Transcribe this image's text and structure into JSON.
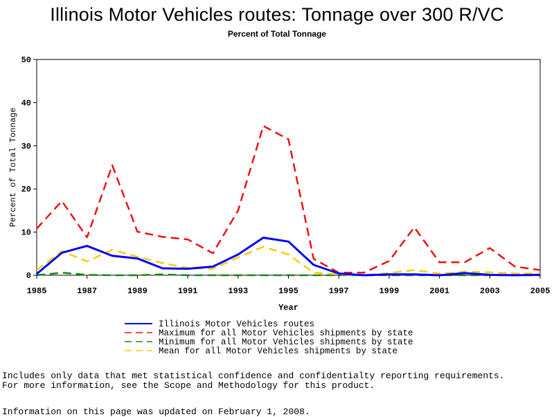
{
  "chart_data": {
    "type": "line",
    "title": "Illinois Motor Vehicles routes: Tonnage over 300 R/VC",
    "subtitle": "Percent of Total Tonnage",
    "xlabel": "Year",
    "ylabel": "Percent of Total Tonnage",
    "xlim": [
      1985,
      2005
    ],
    "ylim": [
      0,
      50
    ],
    "x": [
      1985,
      1986,
      1987,
      1988,
      1989,
      1990,
      1991,
      1992,
      1993,
      1994,
      1995,
      1996,
      1997,
      1998,
      1999,
      2000,
      2001,
      2002,
      2003,
      2004,
      2005
    ],
    "x_ticks": [
      "1985",
      "1987",
      "1989",
      "1991",
      "1993",
      "1995",
      "1997",
      "1999",
      "2001",
      "2003",
      "2005"
    ],
    "y_ticks": [
      "0",
      "10",
      "20",
      "30",
      "40",
      "50"
    ],
    "grid": false,
    "legend_position": "bottom",
    "series": [
      {
        "name": "Illinois Motor Vehicles routes",
        "color": "#0000ff",
        "dash": "solid",
        "values": [
          0.3,
          5.2,
          6.8,
          4.5,
          3.9,
          1.6,
          1.5,
          2.0,
          4.8,
          8.7,
          7.8,
          2.4,
          0.4,
          0.0,
          0.2,
          0.2,
          0.0,
          0.5,
          0.1,
          0.0,
          0.1
        ]
      },
      {
        "name": "Maximum for all Motor Vehicles shipments by state",
        "color": "#ee1111",
        "dash": "dashed",
        "values": [
          10.8,
          17.2,
          8.8,
          25.5,
          10.1,
          8.9,
          8.3,
          5.1,
          15.0,
          34.6,
          31.5,
          3.8,
          0.6,
          0.6,
          3.3,
          11.1,
          3.0,
          3.0,
          6.3,
          2.0,
          1.2
        ]
      },
      {
        "name": "Minimum for all Motor Vehicles shipments by state",
        "color": "#118811",
        "dash": "dashed",
        "values": [
          0.0,
          0.6,
          0.1,
          0.0,
          0.0,
          0.2,
          0.0,
          0.0,
          0.0,
          0.0,
          0.0,
          0.0,
          0.0,
          0.0,
          0.0,
          0.0,
          0.0,
          0.0,
          0.0,
          0.0,
          0.0
        ]
      },
      {
        "name": "Mean for all Motor Vehicles shipments by state",
        "color": "#ffcc00",
        "dash": "dashed",
        "values": [
          1.2,
          5.6,
          3.2,
          5.9,
          4.3,
          2.8,
          1.7,
          1.5,
          4.1,
          6.6,
          4.8,
          0.6,
          0.2,
          0.0,
          0.5,
          1.2,
          0.4,
          0.8,
          0.7,
          0.4,
          0.4
        ]
      }
    ]
  },
  "notes": {
    "line1": "Includes only data that met statistical confidence and confidentialty reporting requirements.",
    "line2": "For more information, see the Scope and Methodology for this product.",
    "line3": "Information on this page was updated on February 1, 2008."
  }
}
